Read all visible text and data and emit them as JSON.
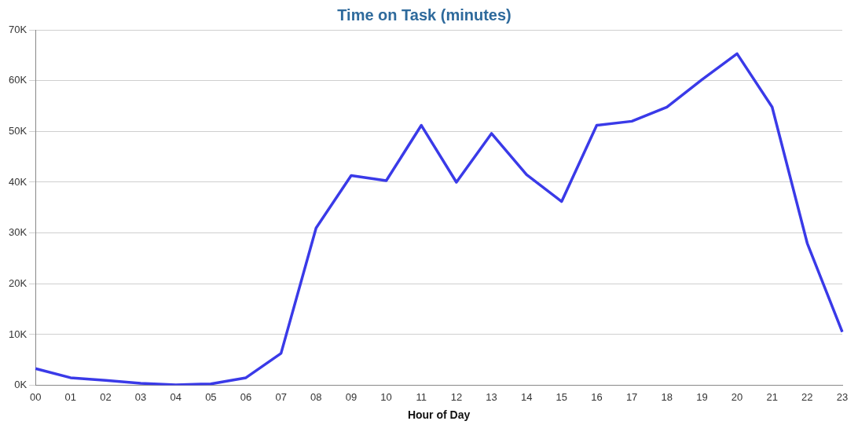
{
  "chart_data": {
    "type": "line",
    "title": "Time on Task (minutes)",
    "xlabel": "Hour of Day",
    "categories": [
      "00",
      "01",
      "02",
      "03",
      "04",
      "05",
      "06",
      "07",
      "08",
      "09",
      "10",
      "11",
      "12",
      "13",
      "14",
      "15",
      "16",
      "17",
      "18",
      "19",
      "20",
      "21",
      "22",
      "23"
    ],
    "series": [
      {
        "color": "#3a3ae8",
        "values": [
          3300,
          1500,
          1000,
          400,
          100,
          300,
          1500,
          6300,
          31000,
          41300,
          40300,
          51200,
          40000,
          49600,
          41500,
          36200,
          51200,
          52000,
          54800,
          60200,
          65300,
          54800,
          28000,
          10500
        ]
      }
    ],
    "ylim": [
      0,
      70000
    ],
    "yticks": [
      {
        "value": 0,
        "label": "0K"
      },
      {
        "value": 10000,
        "label": "10K"
      },
      {
        "value": 20000,
        "label": "20K"
      },
      {
        "value": 30000,
        "label": "30K"
      },
      {
        "value": 40000,
        "label": "40K"
      },
      {
        "value": 50000,
        "label": "50K"
      },
      {
        "value": 60000,
        "label": "60K"
      },
      {
        "value": 70000,
        "label": "70K"
      }
    ],
    "grid": "y",
    "legend": false,
    "marker": "none",
    "line_style": "solid"
  }
}
